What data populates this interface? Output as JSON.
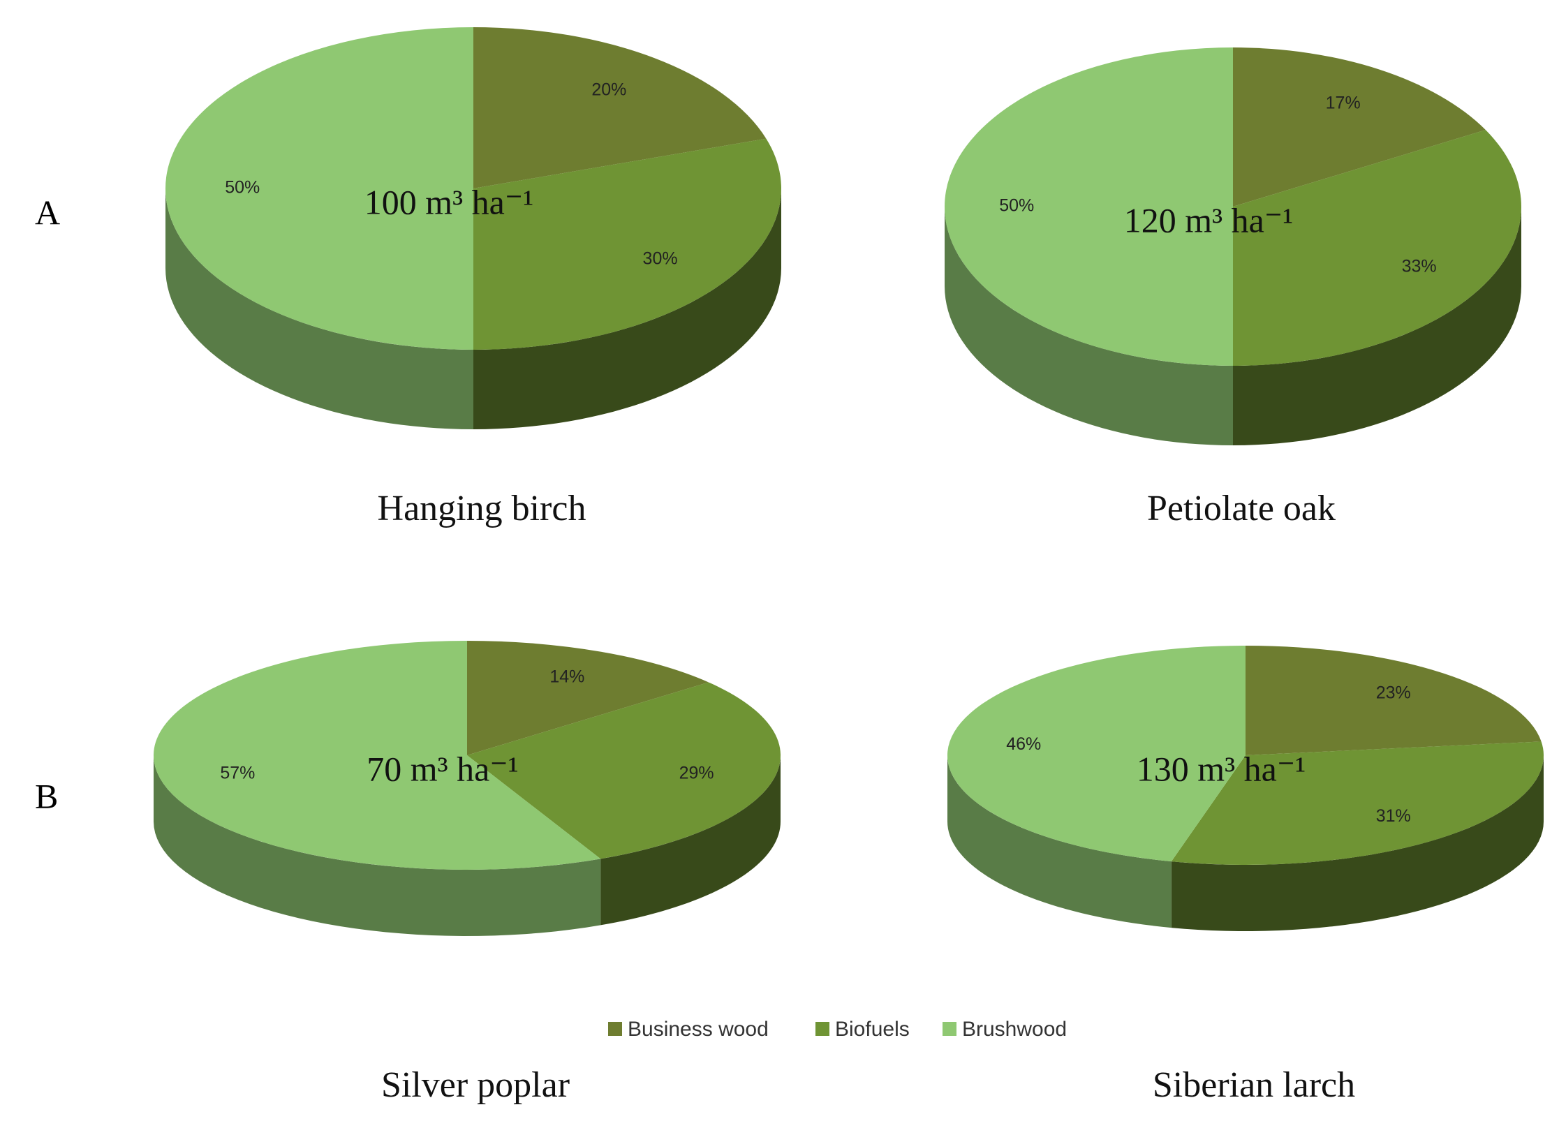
{
  "panel_labels": [
    "A",
    "B"
  ],
  "chart_data": [
    {
      "type": "pie",
      "title": "Hanging birch",
      "annotation": "100 m³ ha⁻¹",
      "categories": [
        "Business wood",
        "Biofuels",
        "Brushwood"
      ],
      "colors": [
        "#6e7d30",
        "#6f9434",
        "#8fc872"
      ],
      "values": [
        20,
        30,
        50
      ],
      "value_labels": [
        "20%",
        "30%",
        "50%"
      ]
    },
    {
      "type": "pie",
      "title": "Petiolate oak",
      "annotation": "120 m³ ha⁻¹",
      "categories": [
        "Business wood",
        "Biofuels",
        "Brushwood"
      ],
      "colors": [
        "#6e7d30",
        "#6f9434",
        "#8fc872"
      ],
      "values": [
        17,
        33,
        50
      ],
      "value_labels": [
        "17%",
        "33%",
        "50%"
      ]
    },
    {
      "type": "pie",
      "title": "Silver poplar",
      "annotation": "70 m³ ha⁻¹",
      "categories": [
        "Business wood",
        "Biofuels",
        "Brushwood"
      ],
      "colors": [
        "#6e7d30",
        "#6f9434",
        "#8fc872"
      ],
      "values": [
        14,
        29,
        57
      ],
      "value_labels": [
        "14%",
        "29%",
        "57%"
      ]
    },
    {
      "type": "pie",
      "title": "Siberian larch",
      "annotation": "130 m³ ha⁻¹",
      "categories": [
        "Business wood",
        "Biofuels",
        "Brushwood"
      ],
      "colors": [
        "#6e7d30",
        "#6f9434",
        "#8fc872"
      ],
      "values": [
        23,
        31,
        46
      ],
      "value_labels": [
        "23%",
        "31%",
        "46%"
      ]
    }
  ]
}
